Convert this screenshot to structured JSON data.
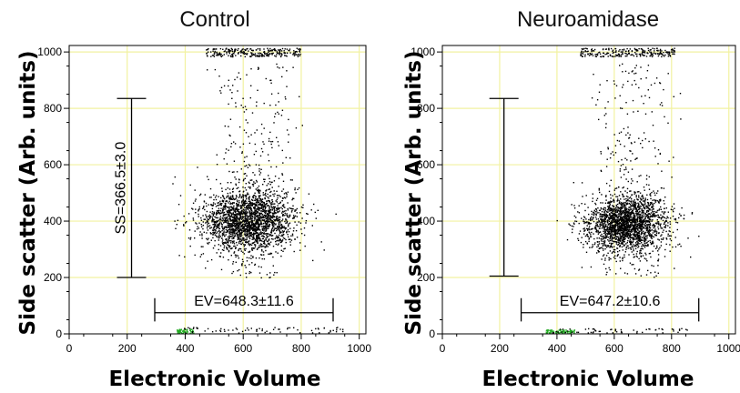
{
  "chart_data": [
    {
      "type": "scatter",
      "title": "Control",
      "xlabel": "Electronic Volume",
      "ylabel": "Side scatter (Arb. units)",
      "xlim": [
        0,
        1023
      ],
      "ylim": [
        0,
        1023
      ],
      "xticks": [
        0,
        200,
        400,
        600,
        800,
        1000
      ],
      "yticks": [
        0,
        200,
        400,
        600,
        800,
        1000
      ],
      "xtick_labels": [
        "0",
        "200",
        "400",
        "600",
        "800",
        "1000"
      ],
      "ytick_labels": [
        "0",
        "200",
        "400",
        "600",
        "800",
        "1000"
      ],
      "grid": true,
      "grid_color": "#f2f2a0",
      "annotations": [
        {
          "text": "SS=366.5±3.0",
          "kind": "vertical-bar",
          "range": [
            200,
            835
          ],
          "at_x": 215
        },
        {
          "text": "EV=648.3±11.6",
          "kind": "horizontal-bar",
          "range": [
            295,
            910
          ],
          "at_y": 75
        }
      ],
      "series": [
        {
          "kind": "main-cluster",
          "color": "#000000",
          "center": [
            615,
            405
          ],
          "spread": [
            80,
            55
          ],
          "count": 2200
        },
        {
          "kind": "diffuse",
          "color": "#000000",
          "x_range": [
            450,
            840
          ],
          "y_range": [
            200,
            960
          ],
          "count": 450
        },
        {
          "kind": "top-saturation",
          "color": "#000000",
          "x_range": [
            470,
            800
          ],
          "y_range": [
            985,
            1015
          ],
          "count": 260
        },
        {
          "kind": "bottom-edge",
          "color": "#22aa22",
          "x_range": [
            370,
            430
          ],
          "y_range": [
            3,
            18
          ],
          "count": 60
        },
        {
          "kind": "bottom-edge",
          "color": "#000000",
          "x_range": [
            380,
            960
          ],
          "y_range": [
            5,
            25
          ],
          "count": 70
        }
      ]
    },
    {
      "type": "scatter",
      "title": "Neuroamidase",
      "xlabel": "Electronic Volume",
      "ylabel": "Side scatter (Arb. units)",
      "xlim": [
        0,
        1023
      ],
      "ylim": [
        0,
        1023
      ],
      "xticks": [
        0,
        200,
        400,
        600,
        800,
        1000
      ],
      "yticks": [
        0,
        200,
        400,
        600,
        800,
        1000
      ],
      "xtick_labels": [
        "0",
        "200",
        "400",
        "600",
        "800",
        "1000"
      ],
      "ytick_labels": [
        "0",
        "200",
        "400",
        "600",
        "800",
        "1000"
      ],
      "grid": true,
      "grid_color": "#f2f2a0",
      "annotations": [
        {
          "text": "",
          "kind": "vertical-bar",
          "range": [
            205,
            835
          ],
          "at_x": 215
        },
        {
          "text": "EV=647.2±10.6",
          "kind": "horizontal-bar",
          "range": [
            275,
            895
          ],
          "at_y": 75
        }
      ],
      "series": [
        {
          "kind": "main-cluster",
          "color": "#000000",
          "center": [
            640,
            390
          ],
          "spread": [
            70,
            50
          ],
          "count": 2100
        },
        {
          "kind": "diffuse",
          "color": "#000000",
          "x_range": [
            470,
            860
          ],
          "y_range": [
            200,
            960
          ],
          "count": 420
        },
        {
          "kind": "top-saturation",
          "color": "#000000",
          "x_range": [
            480,
            810
          ],
          "y_range": [
            985,
            1015
          ],
          "count": 240
        },
        {
          "kind": "bottom-edge",
          "color": "#22aa22",
          "x_range": [
            360,
            460
          ],
          "y_range": [
            3,
            16
          ],
          "count": 90
        },
        {
          "kind": "bottom-edge",
          "color": "#000000",
          "x_range": [
            370,
            880
          ],
          "y_range": [
            5,
            22
          ],
          "count": 60
        }
      ]
    }
  ]
}
